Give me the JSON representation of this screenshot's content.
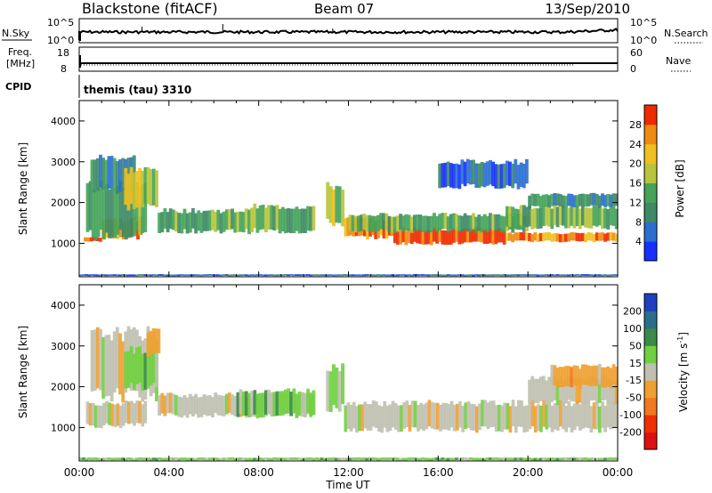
{
  "header": {
    "title": "Blackstone (fitACF)",
    "beam": "Beam 07",
    "date": "13/Sep/2010"
  },
  "top_panels": {
    "nsky_label": "N.Sky",
    "nsky_ticks": [
      "10^5",
      "10^0"
    ],
    "nsearch_label": "N.Search",
    "nsearch_ticks": [
      "10^5",
      "10^0"
    ],
    "freq_label_1": "Freq.",
    "freq_label_2": "[MHz]",
    "freq_ticks": [
      "18",
      "8"
    ],
    "nave_label": "Nave",
    "nave_ticks": [
      "60",
      "0"
    ],
    "cpid_label": "CPID",
    "cpid_text": "themis (tau) 3310"
  },
  "chart_data": [
    {
      "type": "heatmap",
      "title": "",
      "ylabel": "Slant Range [km]",
      "xlabel": "Time UT",
      "x_ticks": [
        "00:00",
        "04:00",
        "08:00",
        "12:00",
        "16:00",
        "20:00",
        "00:00"
      ],
      "y_ticks": [
        1000,
        2000,
        3000,
        4000
      ],
      "ylim": [
        180,
        4500
      ],
      "colorbar": {
        "label": "Power [dB]",
        "ticks": [
          4,
          8,
          12,
          16,
          20,
          24,
          28
        ],
        "range": [
          0,
          32
        ],
        "colors": [
          "#1530ff",
          "#2a6fd0",
          "#3d8a66",
          "#45a35a",
          "#b8c43a",
          "#f0c020",
          "#f08a10",
          "#f02a00"
        ]
      },
      "bands": [
        {
          "t0": 0.2,
          "t1": 1.0,
          "r0": 1050,
          "r1": 1150,
          "level": 28
        },
        {
          "t0": 1.0,
          "t1": 2.8,
          "r0": 1150,
          "r1": 1600,
          "level": 24
        },
        {
          "t0": 0.3,
          "t1": 3.0,
          "r0": 1200,
          "r1": 2400,
          "level": 12
        },
        {
          "t0": 0.5,
          "t1": 2.5,
          "r0": 2300,
          "r1": 3100,
          "level": 8
        },
        {
          "t0": 2.0,
          "t1": 3.5,
          "r0": 1900,
          "r1": 2800,
          "level": 16
        },
        {
          "t0": 3.5,
          "t1": 7.5,
          "r0": 1300,
          "r1": 1800,
          "level": 12
        },
        {
          "t0": 7.5,
          "t1": 10.5,
          "r0": 1300,
          "r1": 1900,
          "level": 12
        },
        {
          "t0": 11.0,
          "t1": 11.8,
          "r0": 1500,
          "r1": 2400,
          "level": 16
        },
        {
          "t0": 11.8,
          "t1": 14.0,
          "r0": 1150,
          "r1": 1600,
          "level": 24
        },
        {
          "t0": 14.0,
          "t1": 19.0,
          "r0": 1000,
          "r1": 1350,
          "level": 28
        },
        {
          "t0": 12.0,
          "t1": 20.0,
          "r0": 1300,
          "r1": 1700,
          "level": 12
        },
        {
          "t0": 19.0,
          "t1": 24.0,
          "r0": 1050,
          "r1": 1250,
          "level": 24
        },
        {
          "t0": 19.0,
          "t1": 24.0,
          "r0": 1400,
          "r1": 1900,
          "level": 12
        },
        {
          "t0": 16.0,
          "t1": 20.0,
          "r0": 2400,
          "r1": 3000,
          "level": 4
        },
        {
          "t0": 20.0,
          "t1": 24.0,
          "r0": 1900,
          "r1": 2200,
          "level": 8
        },
        {
          "t0": 0.0,
          "t1": 24.0,
          "r0": 200,
          "r1": 240,
          "level": 4
        }
      ]
    },
    {
      "type": "heatmap",
      "title": "",
      "ylabel": "Slant Range [km]",
      "xlabel": "Time UT",
      "x_ticks": [
        "00:00",
        "04:00",
        "08:00",
        "12:00",
        "16:00",
        "20:00",
        "00:00"
      ],
      "y_ticks": [
        1000,
        2000,
        3000,
        4000
      ],
      "ylim": [
        180,
        4500
      ],
      "colorbar": {
        "label": "Velocity [m s^-1]",
        "ticks": [
          "200",
          "100",
          "50",
          "15",
          "-15",
          "-50",
          "-100",
          "-200"
        ],
        "colors": [
          "#2040c0",
          "#2a6f8a",
          "#3a8a4a",
          "#70d040",
          "#c0c0b0",
          "#f0a030",
          "#f07820",
          "#f03000",
          "#e01010"
        ]
      },
      "bands": [
        {
          "t0": 0.3,
          "t1": 3.0,
          "r0": 1050,
          "r1": 1600,
          "level": 4
        },
        {
          "t0": 0.5,
          "t1": 3.5,
          "r0": 1800,
          "r1": 3300,
          "level": 4
        },
        {
          "t0": 2.0,
          "t1": 3.5,
          "r0": 2000,
          "r1": 2900,
          "level": 3
        },
        {
          "t0": 3.0,
          "t1": 3.6,
          "r0": 2800,
          "r1": 3400,
          "level": 5
        },
        {
          "t0": 3.5,
          "t1": 10.5,
          "r0": 1300,
          "r1": 1800,
          "level": 4
        },
        {
          "t0": 7.0,
          "t1": 10.5,
          "r0": 1300,
          "r1": 1900,
          "level": 3
        },
        {
          "t0": 11.0,
          "t1": 11.8,
          "r0": 1500,
          "r1": 2500,
          "level": 3
        },
        {
          "t0": 11.8,
          "t1": 24.0,
          "r0": 950,
          "r1": 1600,
          "level": 4
        },
        {
          "t0": 20.0,
          "t1": 24.0,
          "r0": 1600,
          "r1": 2200,
          "level": 4
        },
        {
          "t0": 21.0,
          "t1": 24.0,
          "r0": 2000,
          "r1": 2500,
          "level": 5
        },
        {
          "t0": 0.0,
          "t1": 24.0,
          "r0": 200,
          "r1": 260,
          "level": 3
        }
      ]
    }
  ]
}
